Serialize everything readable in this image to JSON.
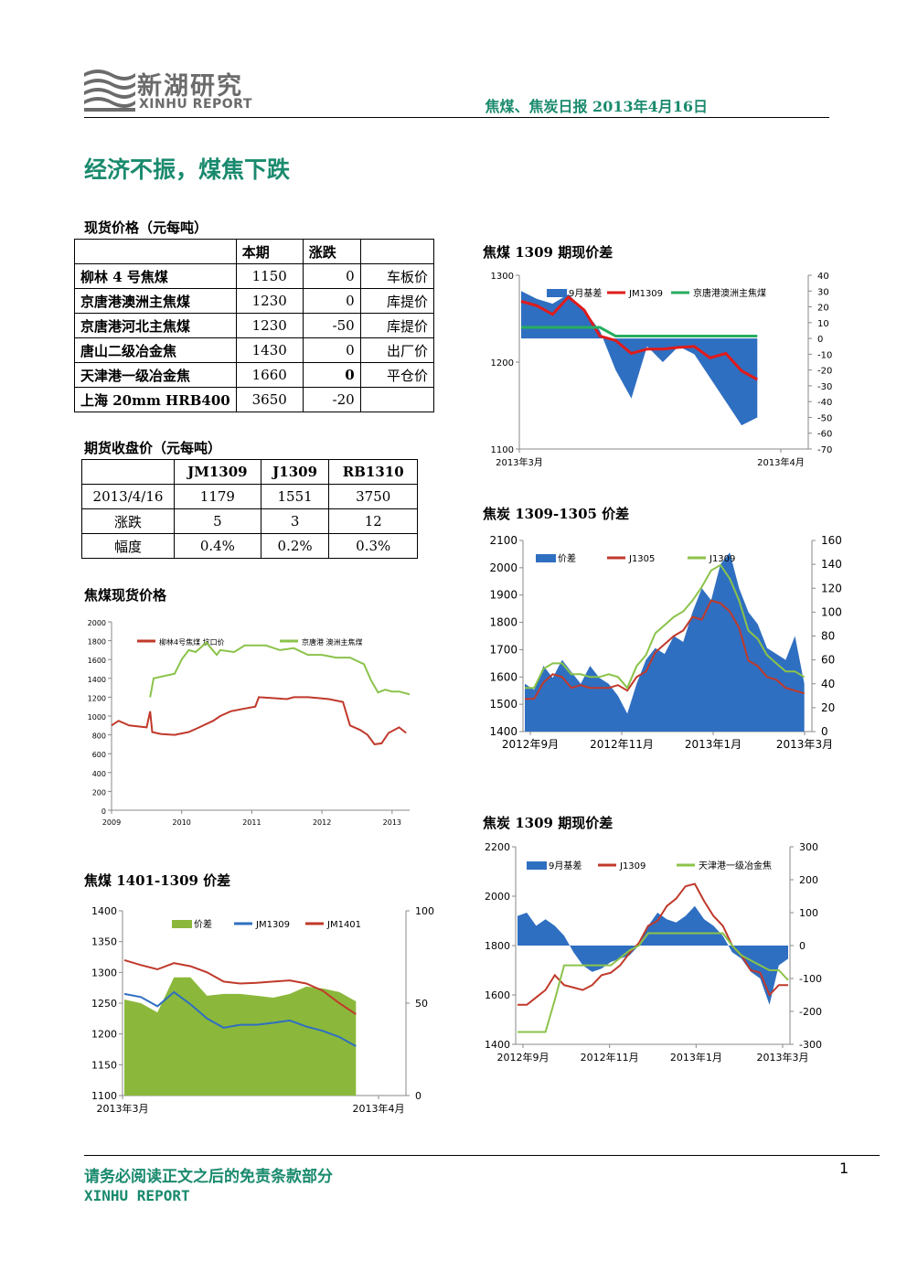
{
  "header": {
    "logo_cn": "新湖研究",
    "logo_en": "XINHU REPORT",
    "title": "焦煤、焦炭日报 2013年4月16日"
  },
  "page_title": "经济不振，煤焦下跌",
  "spot": {
    "section": "现货价格（元每吨）",
    "columns": [
      "",
      "本期",
      "涨跌",
      ""
    ],
    "rows": [
      {
        "name": "柳林 4 号焦煤",
        "price": "1150",
        "change": "0",
        "note": "车板价"
      },
      {
        "name": "京唐港澳洲主焦煤",
        "price": "1230",
        "change": "0",
        "note": "库提价"
      },
      {
        "name": "京唐港河北主焦煤",
        "price": "1230",
        "change": "-50",
        "note": "库提价"
      },
      {
        "name": "唐山二级冶金焦",
        "price": "1430",
        "change": "0",
        "note": "出厂价"
      },
      {
        "name": "天津港一级冶金焦",
        "price": "1660",
        "change": "0",
        "note": "平仓价"
      },
      {
        "name": "上海 20mm HRB400",
        "price": "3650",
        "change": "-20",
        "note": ""
      }
    ]
  },
  "futures": {
    "section": "期货收盘价（元每吨）",
    "columns": [
      "",
      "JM1309",
      "J1309",
      "RB1310"
    ],
    "rows": [
      [
        "2013/4/16",
        "1179",
        "1551",
        "3750"
      ],
      [
        "涨跌",
        "5",
        "3",
        "12"
      ],
      [
        "幅度",
        "0.4%",
        "0.2%",
        "0.3%"
      ]
    ]
  },
  "sections": {
    "c1": "焦煤现货价格",
    "c2": "焦煤 1401-1309 价差",
    "c3": "焦煤 1309 期现价差",
    "c4": "焦炭 1309-1305 价差",
    "c5": "焦炭 1309 期现价差"
  },
  "chart_data": [
    {
      "id": "c1",
      "type": "line",
      "y_ticks": [
        "0",
        "200",
        "400",
        "600",
        "800",
        "1000",
        "1200",
        "1400",
        "1600",
        "1800",
        "2000"
      ],
      "x_ticks": [
        "2009",
        "2010",
        "2011",
        "2012",
        "2013"
      ],
      "series": [
        {
          "name": "柳林4号焦煤 坑口价",
          "color": "#c0392b",
          "x": [
            2009.0,
            2009.1,
            2009.25,
            2009.5,
            2009.55,
            2009.58,
            2009.7,
            2009.9,
            2010.1,
            2010.25,
            2010.45,
            2010.55,
            2010.7,
            2010.9,
            2011.05,
            2011.1,
            2011.3,
            2011.5,
            2011.6,
            2011.8,
            2011.95,
            2012.1,
            2012.3,
            2012.4,
            2012.55,
            2012.65,
            2012.75,
            2012.85,
            2012.95,
            2013.1,
            2013.2
          ],
          "y": [
            900,
            950,
            900,
            880,
            1050,
            830,
            810,
            800,
            830,
            880,
            950,
            1000,
            1050,
            1080,
            1100,
            1200,
            1190,
            1180,
            1200,
            1200,
            1190,
            1180,
            1150,
            900,
            850,
            800,
            700,
            710,
            820,
            880,
            820
          ]
        },
        {
          "name": "京唐港 澳洲主焦煤",
          "color": "#8bc34a",
          "x": [
            2009.55,
            2009.6,
            2009.9,
            2010.0,
            2010.1,
            2010.2,
            2010.35,
            2010.5,
            2010.55,
            2010.75,
            2010.9,
            2011.05,
            2011.2,
            2011.4,
            2011.6,
            2011.8,
            2012.0,
            2012.2,
            2012.4,
            2012.6,
            2012.7,
            2012.8,
            2012.9,
            2013.0,
            2013.1,
            2013.25
          ],
          "y": [
            1200,
            1400,
            1450,
            1600,
            1700,
            1680,
            1780,
            1650,
            1700,
            1680,
            1750,
            1750,
            1750,
            1700,
            1720,
            1650,
            1650,
            1620,
            1620,
            1550,
            1380,
            1250,
            1280,
            1260,
            1260,
            1230
          ]
        }
      ]
    },
    {
      "id": "c2",
      "type": "combo",
      "y_left_ticks": [
        "1100",
        "1150",
        "1200",
        "1250",
        "1300",
        "1350",
        "1400"
      ],
      "y_right_ticks": [
        "0",
        "50",
        "100"
      ],
      "x_ticks": [
        "2013年3月",
        "2013年4月"
      ],
      "series": [
        {
          "name": "价差",
          "kind": "area",
          "axis": "right",
          "color": "#8bb83b",
          "values": [
            52,
            50,
            45,
            64,
            64,
            54,
            55,
            55,
            54,
            53,
            55,
            59,
            58,
            56,
            51
          ]
        },
        {
          "name": "JM1309",
          "kind": "line",
          "axis": "left",
          "color": "#2f6fc1",
          "values": [
            1265,
            1260,
            1245,
            1268,
            1248,
            1225,
            1210,
            1215,
            1215,
            1218,
            1222,
            1212,
            1205,
            1195,
            1180
          ]
        },
        {
          "name": "JM1401",
          "kind": "line",
          "axis": "left",
          "color": "#c0392b",
          "values": [
            1320,
            1312,
            1305,
            1315,
            1310,
            1300,
            1285,
            1282,
            1283,
            1285,
            1287,
            1282,
            1270,
            1250,
            1232
          ]
        }
      ]
    },
    {
      "id": "c3",
      "type": "combo",
      "y_left_ticks": [
        "1100",
        "1200",
        "1300"
      ],
      "y_right_ticks": [
        "-70",
        "-60",
        "-50",
        "-40",
        "-30",
        "-20",
        "-10",
        "0",
        "10",
        "20",
        "30",
        "40"
      ],
      "x_ticks": [
        "2013年3月",
        "2013年4月"
      ],
      "series": [
        {
          "name": "9月基差",
          "kind": "area",
          "axis": "right",
          "color": "#2f6fc1",
          "values": [
            30,
            25,
            22,
            28,
            18,
            5,
            -20,
            -38,
            -5,
            -15,
            -5,
            -10,
            -25,
            -40,
            -55,
            -50
          ]
        },
        {
          "name": "JM1309",
          "kind": "line",
          "axis": "left",
          "color": "#e01b1b",
          "values": [
            1270,
            1265,
            1255,
            1275,
            1260,
            1230,
            1225,
            1210,
            1215,
            1215,
            1217,
            1218,
            1205,
            1210,
            1190,
            1180
          ]
        },
        {
          "name": "京唐港澳洲主焦煤",
          "kind": "line",
          "axis": "left",
          "color": "#27ae60",
          "values": [
            1240,
            1240,
            1240,
            1240,
            1240,
            1240,
            1230,
            1230,
            1230,
            1230,
            1230,
            1230,
            1230,
            1230,
            1230,
            1230
          ]
        }
      ]
    },
    {
      "id": "c4",
      "type": "combo",
      "y_left_ticks": [
        "1400",
        "1500",
        "1600",
        "1700",
        "1800",
        "1900",
        "2000",
        "2100"
      ],
      "y_right_ticks": [
        "0",
        "20",
        "40",
        "60",
        "80",
        "100",
        "120",
        "140",
        "160"
      ],
      "x_ticks": [
        "2012年9月",
        "2012年11月",
        "2013年1月",
        "2013年3月"
      ],
      "series": [
        {
          "name": "价差",
          "kind": "area",
          "axis": "right",
          "color": "#2f6fc1",
          "values": [
            40,
            35,
            55,
            45,
            60,
            50,
            40,
            55,
            45,
            40,
            30,
            15,
            40,
            60,
            70,
            65,
            80,
            75,
            100,
            120,
            110,
            140,
            150,
            120,
            100,
            90,
            70,
            65,
            60,
            80,
            40
          ]
        },
        {
          "name": "J1305",
          "kind": "line",
          "axis": "left",
          "color": "#c0392b",
          "values": [
            1520,
            1520,
            1580,
            1610,
            1600,
            1560,
            1570,
            1560,
            1560,
            1560,
            1570,
            1550,
            1600,
            1620,
            1690,
            1720,
            1750,
            1770,
            1820,
            1810,
            1880,
            1870,
            1840,
            1780,
            1660,
            1640,
            1600,
            1590,
            1560,
            1550,
            1540
          ]
        },
        {
          "name": "J1309",
          "kind": "line",
          "axis": "left",
          "color": "#8bc34a",
          "values": [
            1560,
            1560,
            1630,
            1650,
            1650,
            1610,
            1610,
            1600,
            1600,
            1610,
            1600,
            1560,
            1640,
            1680,
            1760,
            1790,
            1820,
            1840,
            1880,
            1930,
            1990,
            2010,
            1960,
            1880,
            1770,
            1740,
            1680,
            1650,
            1620,
            1620,
            1600
          ]
        }
      ]
    },
    {
      "id": "c5",
      "type": "combo",
      "y_left_ticks": [
        "1400",
        "1600",
        "1800",
        "2000",
        "2200"
      ],
      "y_right_ticks": [
        "-300",
        "-200",
        "-100",
        "0",
        "100",
        "200",
        "300"
      ],
      "x_ticks": [
        "2012年9月",
        "2012年11月",
        "2013年1月",
        "2013年3月"
      ],
      "series": [
        {
          "name": "9月基差",
          "kind": "area",
          "axis": "right",
          "color": "#2f6fc1",
          "values": [
            90,
            100,
            60,
            80,
            60,
            30,
            -20,
            -60,
            -80,
            -70,
            -50,
            -40,
            -30,
            0,
            60,
            100,
            80,
            70,
            90,
            120,
            80,
            60,
            30,
            -20,
            -40,
            -80,
            -100,
            -180,
            -60,
            -40
          ]
        },
        {
          "name": "J1309",
          "kind": "line",
          "axis": "left",
          "color": "#c0392b",
          "values": [
            1560,
            1560,
            1590,
            1620,
            1680,
            1640,
            1630,
            1620,
            1640,
            1680,
            1690,
            1720,
            1770,
            1810,
            1880,
            1900,
            1960,
            1990,
            2040,
            2050,
            1980,
            1920,
            1880,
            1800,
            1760,
            1700,
            1690,
            1600,
            1640,
            1640
          ]
        },
        {
          "name": "天津港一级冶金焦",
          "kind": "line",
          "axis": "left",
          "color": "#8bc34a",
          "values": [
            1450,
            1450,
            1450,
            1450,
            1580,
            1720,
            1720,
            1720,
            1720,
            1720,
            1720,
            1750,
            1780,
            1800,
            1850,
            1850,
            1850,
            1850,
            1850,
            1850,
            1850,
            1850,
            1850,
            1800,
            1760,
            1740,
            1720,
            1700,
            1700,
            1660
          ]
        }
      ]
    }
  ],
  "footer": {
    "disclaimer": "请务必阅读正文之后的免责条款部分",
    "brand": "XINHU REPORT",
    "page": "1"
  }
}
